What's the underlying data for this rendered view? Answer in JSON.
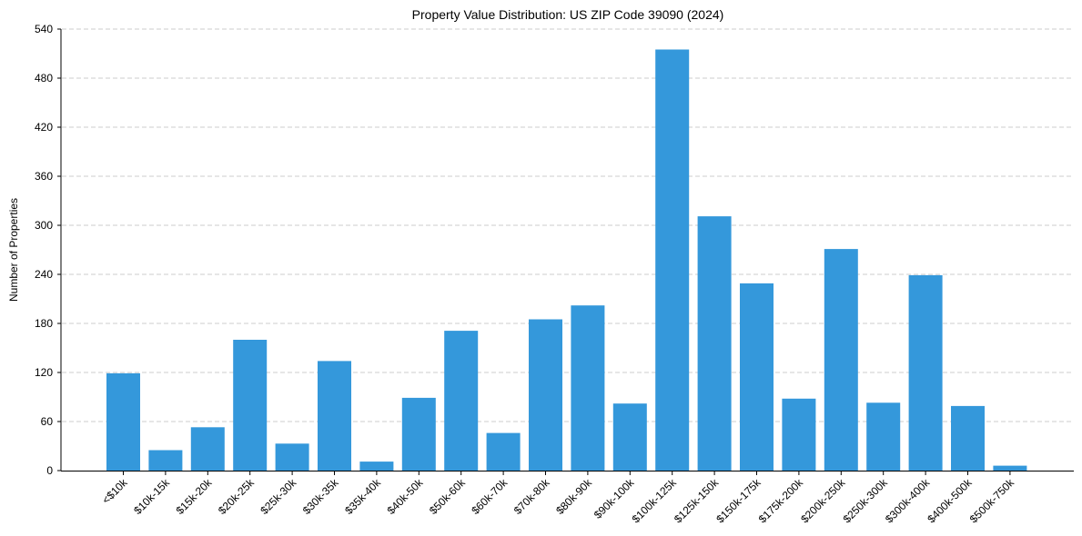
{
  "chart_data": {
    "type": "bar",
    "title": "Property Value Distribution: US ZIP Code 39090 (2024)",
    "xlabel": "",
    "ylabel": "Number of Properties",
    "ylim": [
      0,
      540
    ],
    "yticks": [
      0,
      60,
      120,
      180,
      240,
      300,
      360,
      420,
      480,
      540
    ],
    "grid": {
      "y": true,
      "x": false,
      "style": "dashed"
    },
    "legend": null,
    "bar_color": "#3498db",
    "categories": [
      "<$10k",
      "$10k-15k",
      "$15k-20k",
      "$20k-25k",
      "$25k-30k",
      "$30k-35k",
      "$35k-40k",
      "$40k-50k",
      "$50k-60k",
      "$60k-70k",
      "$70k-80k",
      "$80k-90k",
      "$90k-100k",
      "$100k-125k",
      "$125k-150k",
      "$150k-175k",
      "$175k-200k",
      "$200k-250k",
      "$250k-300k",
      "$300k-400k",
      "$400k-500k",
      "$500k-750k"
    ],
    "values": [
      119,
      25,
      53,
      160,
      33,
      134,
      11,
      89,
      171,
      46,
      185,
      202,
      82,
      515,
      311,
      229,
      88,
      271,
      83,
      239,
      79,
      6
    ],
    "xtick_rotation": 45
  }
}
